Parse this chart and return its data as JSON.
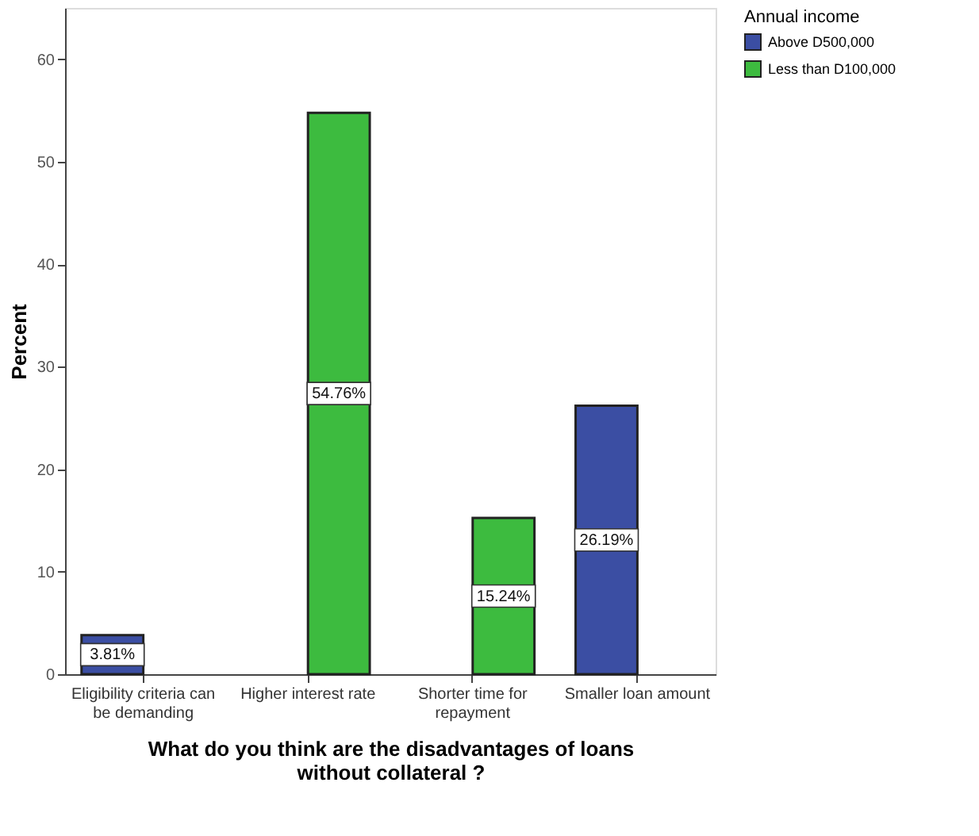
{
  "chart_data": {
    "type": "bar",
    "categories": [
      "Eligibility criteria can be demanding",
      "Higher interest rate",
      "Shorter time for repayment",
      "Smaller loan amount"
    ],
    "series": [
      {
        "name": "Above D500,000",
        "color": "#3b4ea3",
        "values": [
          3.81,
          null,
          null,
          26.19
        ],
        "value_labels": [
          "3.81%",
          null,
          null,
          "26.19%"
        ]
      },
      {
        "name": "Less than D100,000",
        "color": "#3dbb3f",
        "values": [
          null,
          54.76,
          15.24,
          null
        ],
        "value_labels": [
          null,
          "54.76%",
          "15.24%",
          null
        ]
      }
    ],
    "xlabel": "What do you think are the disadvantages of loans without collateral ?",
    "ylabel": "Percent",
    "legend_title": "Annual income",
    "ylim": [
      0,
      65
    ],
    "yticks": [
      0,
      10,
      20,
      30,
      40,
      50,
      60
    ],
    "grid": false,
    "legend": "top right"
  }
}
